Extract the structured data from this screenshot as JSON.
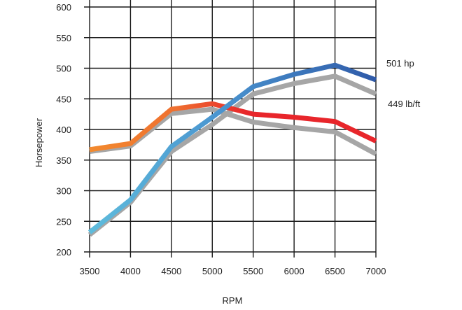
{
  "chart_data": {
    "type": "line",
    "title": "",
    "xlabel": "RPM",
    "ylabel": "Horsepower",
    "x": [
      3500,
      4000,
      4500,
      5000,
      5500,
      6000,
      6500,
      7000
    ],
    "x_ticks": [
      "3500",
      "4000",
      "4500",
      "5000",
      "5500",
      "6000",
      "6500",
      "7000"
    ],
    "y_ticks": [
      "200",
      "250",
      "300",
      "350",
      "400",
      "450",
      "500",
      "550",
      "600"
    ],
    "ylim": [
      200,
      600
    ],
    "xlim": [
      3500,
      7000
    ],
    "grid": true,
    "legend": "none",
    "series": [
      {
        "key": "horsepower",
        "style": "gradient",
        "values": [
          232,
          285,
          372,
          420,
          470,
          490,
          505,
          481
        ]
      },
      {
        "key": "torque",
        "style": "gradient",
        "values": [
          367,
          377,
          433,
          442,
          425,
          420,
          413,
          381
        ]
      },
      {
        "key": "horsepower-shadow",
        "style": "shadow",
        "values": [
          228,
          281,
          364,
          408,
          458,
          475,
          487,
          458
        ]
      },
      {
        "key": "torque-shadow",
        "style": "shadow",
        "values": [
          364,
          373,
          426,
          433,
          412,
          403,
          396,
          360
        ]
      }
    ],
    "annotations": [
      {
        "text": "501 hp",
        "series": "horsepower",
        "y": 501
      },
      {
        "text": "449 lb/ft",
        "series": "torque",
        "y": 449
      }
    ],
    "colors": {
      "grid": "#1a1a1a",
      "shadow": "#a6a6a6",
      "hp_start": "#5fbcdc",
      "hp_end": "#2f5aa8",
      "tq_start": "#f28a2e",
      "tq_end": "#e8262b"
    }
  }
}
